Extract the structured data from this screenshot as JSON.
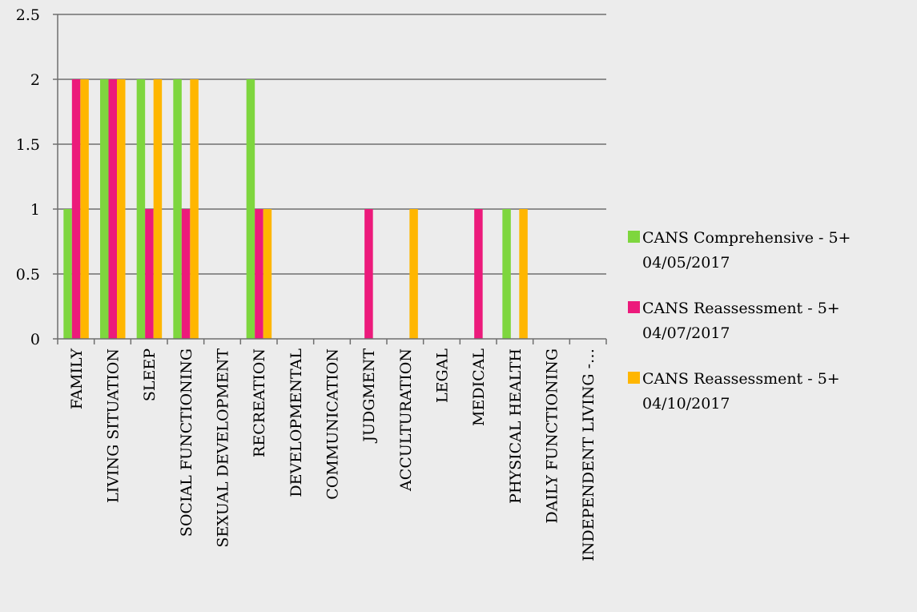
{
  "chart_data": {
    "type": "bar",
    "categories": [
      "FAMILY",
      "LIVING SITUATION",
      "SLEEP",
      "SOCIAL FUNCTIONING",
      "SEXUAL DEVELOPMENT",
      "RECREATION",
      "DEVELOPMENTAL",
      "COMMUNICATION",
      "JUDGMENT",
      "ACCULTURATION",
      "LEGAL",
      "MEDICAL",
      "PHYSICAL HEALTH",
      "DAILY FUNCTIONING",
      "INDEPENDENT LIVING -…"
    ],
    "series": [
      {
        "name": [
          "CANS Comprehensive - 5+",
          "04/05/2017"
        ],
        "color": "#7ed63e",
        "values": [
          1,
          2,
          2,
          2,
          0,
          2,
          0,
          0,
          0,
          0,
          0,
          0,
          1,
          0,
          0
        ]
      },
      {
        "name": [
          "CANS Reassessment - 5+",
          "04/07/2017"
        ],
        "color": "#ec1a7b",
        "values": [
          2,
          2,
          1,
          1,
          0,
          1,
          0,
          0,
          1,
          0,
          0,
          1,
          0,
          0,
          0
        ]
      },
      {
        "name": [
          "CANS Reassessment - 5+",
          "04/10/2017"
        ],
        "color": "#ffb600",
        "values": [
          2,
          2,
          2,
          2,
          0,
          1,
          0,
          0,
          0,
          1,
          0,
          0,
          1,
          0,
          0
        ]
      }
    ],
    "yticks": [
      "0",
      "0.5",
      "1",
      "1.5",
      "2",
      "2.5"
    ],
    "ylim": [
      0,
      2.5
    ],
    "grid": true,
    "legend": "right"
  }
}
